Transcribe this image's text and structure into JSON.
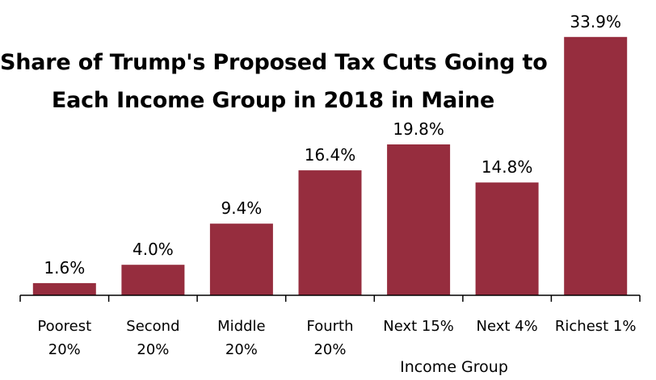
{
  "chart_data": {
    "type": "bar",
    "title_lines": [
      "Share of Trump's Proposed Tax Cuts Going to",
      "Each Income Group in 2018 in Maine"
    ],
    "xlabel": "Income Group",
    "ylabel": "",
    "categories": [
      [
        "Poorest",
        "20%"
      ],
      [
        "Second",
        "20%"
      ],
      [
        "Middle",
        "20%"
      ],
      [
        "Fourth",
        "20%"
      ],
      [
        "Next 15%"
      ],
      [
        "Next 4%"
      ],
      [
        "Richest 1%"
      ]
    ],
    "values": [
      1.6,
      4.0,
      9.4,
      16.4,
      19.8,
      14.8,
      33.9
    ],
    "value_labels": [
      "1.6%",
      "4.0%",
      "9.4%",
      "16.4%",
      "19.8%",
      "14.8%",
      "33.9%"
    ],
    "ylim": [
      0,
      36
    ],
    "grid": false,
    "bar_color": "#962d3e"
  }
}
